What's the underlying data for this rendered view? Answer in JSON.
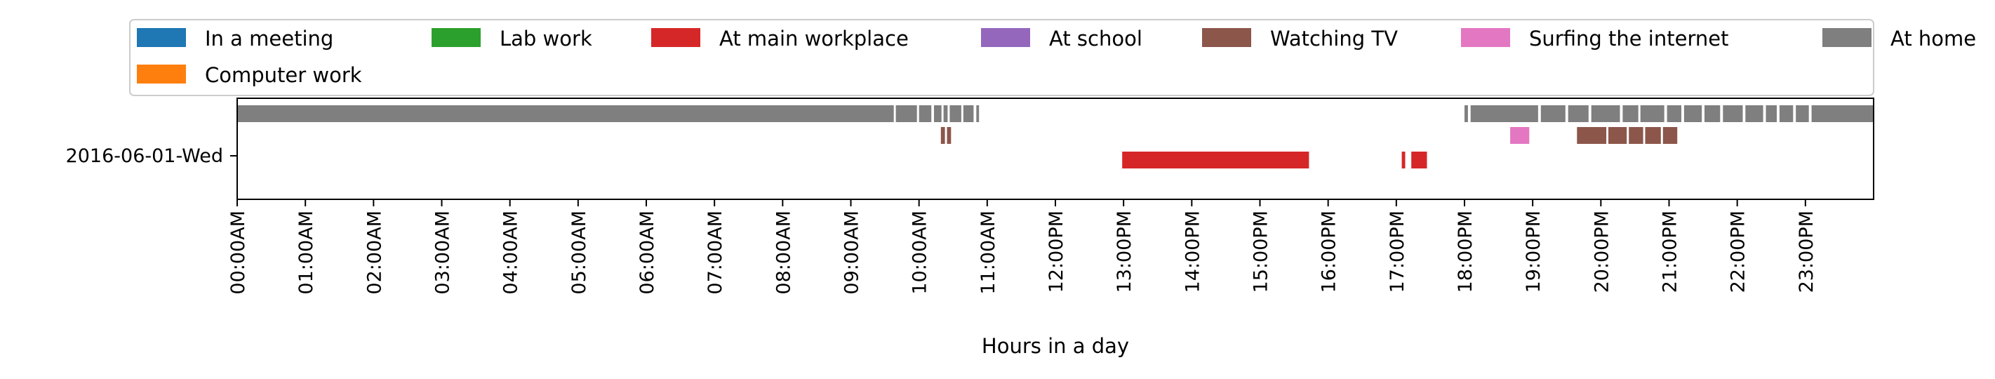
{
  "chart_data": {
    "type": "timeline",
    "xlabel": "Hours in a day",
    "xlim": [
      0,
      24
    ],
    "y_categories": [
      "2016-06-01-Wed"
    ],
    "x_tick_labels": [
      "00:00AM",
      "01:00AM",
      "02:00AM",
      "03:00AM",
      "04:00AM",
      "05:00AM",
      "06:00AM",
      "07:00AM",
      "08:00AM",
      "09:00AM",
      "10:00AM",
      "11:00AM",
      "12:00PM",
      "13:00PM",
      "14:00PM",
      "15:00PM",
      "16:00PM",
      "17:00PM",
      "18:00PM",
      "19:00PM",
      "20:00PM",
      "21:00PM",
      "22:00PM",
      "23:00PM"
    ],
    "legend": {
      "placement": "top",
      "entries": [
        {
          "label": "In a meeting",
          "color": "#1f77b4"
        },
        {
          "label": "Lab work",
          "color": "#2ca02c"
        },
        {
          "label": "At main workplace",
          "color": "#d62728"
        },
        {
          "label": "At school",
          "color": "#9467bd"
        },
        {
          "label": "Watching TV",
          "color": "#8c564b"
        },
        {
          "label": "Surfing the internet",
          "color": "#e377c2"
        },
        {
          "label": "At home",
          "color": "#7f7f7f"
        },
        {
          "label": "Computer work",
          "color": "#ff7f0e"
        }
      ]
    },
    "series": [
      {
        "name": "At home",
        "color": "#7f7f7f",
        "lane": 0,
        "intervals": [
          [
            0.0,
            9.63
          ],
          [
            9.66,
            9.97
          ],
          [
            10.0,
            10.18
          ],
          [
            10.22,
            10.33
          ],
          [
            10.36,
            10.42
          ],
          [
            10.45,
            10.62
          ],
          [
            10.65,
            10.8
          ],
          [
            10.84,
            10.88
          ],
          [
            18.0,
            18.05
          ],
          [
            18.09,
            19.08
          ],
          [
            19.12,
            19.48
          ],
          [
            19.52,
            19.82
          ],
          [
            19.86,
            20.28
          ],
          [
            20.32,
            20.55
          ],
          [
            20.58,
            20.93
          ],
          [
            20.97,
            21.18
          ],
          [
            21.22,
            21.48
          ],
          [
            21.52,
            21.75
          ],
          [
            21.79,
            22.08
          ],
          [
            22.12,
            22.38
          ],
          [
            22.42,
            22.58
          ],
          [
            22.62,
            22.82
          ],
          [
            22.86,
            23.05
          ],
          [
            23.09,
            24.0
          ]
        ]
      },
      {
        "name": "Watching TV",
        "color": "#8c564b",
        "lane": 1,
        "intervals": [
          [
            10.32,
            10.38
          ],
          [
            10.41,
            10.47
          ],
          [
            19.65,
            20.08
          ],
          [
            20.11,
            20.38
          ],
          [
            20.41,
            20.62
          ],
          [
            20.65,
            20.88
          ],
          [
            20.91,
            21.12
          ]
        ]
      },
      {
        "name": "Surfing the internet",
        "color": "#e377c2",
        "lane": 1,
        "intervals": [
          [
            18.67,
            18.95
          ]
        ]
      },
      {
        "name": "At main workplace",
        "color": "#d62728",
        "lane": 2,
        "intervals": [
          [
            12.98,
            15.72
          ],
          [
            17.08,
            17.13
          ],
          [
            17.22,
            17.45
          ]
        ]
      }
    ]
  }
}
